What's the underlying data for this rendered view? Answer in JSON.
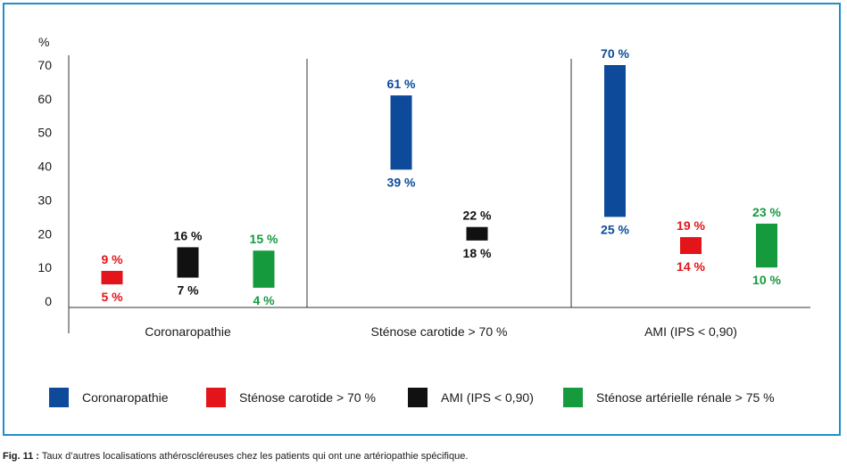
{
  "chart_data": {
    "type": "bar",
    "subtype": "floating-range",
    "y_unit_label": "%",
    "ylim": [
      0,
      70
    ],
    "yticks": [
      0,
      10,
      20,
      30,
      40,
      50,
      60,
      70
    ],
    "categories": [
      "Coronaropathie",
      "Sténose carotide > 70 %",
      "AMI (IPS < 0,90)"
    ],
    "series": [
      {
        "name": "Coronaropathie",
        "color": "#0d4a9a",
        "ranges": [
          null,
          [
            39,
            61
          ],
          [
            25,
            70
          ]
        ],
        "labels": [
          null,
          [
            "39 %",
            "61 %"
          ],
          [
            "25 %",
            "70 %"
          ]
        ]
      },
      {
        "name": "Sténose carotide > 70 %",
        "color": "#e3151a",
        "ranges": [
          [
            5,
            9
          ],
          null,
          [
            14,
            19
          ]
        ],
        "labels": [
          [
            "5 %",
            "9 %"
          ],
          null,
          [
            "14 %",
            "19 %"
          ]
        ]
      },
      {
        "name": "AMI (IPS < 0,90)",
        "color": "#111111",
        "ranges": [
          [
            7,
            16
          ],
          [
            18,
            22
          ],
          null
        ],
        "labels": [
          [
            "7 %",
            "16 %"
          ],
          [
            "18 %",
            "22 %"
          ],
          null
        ]
      },
      {
        "name": "Sténose artérielle rénale > 75 %",
        "color": "#169a3e",
        "ranges": [
          [
            4,
            15
          ],
          null,
          [
            10,
            23
          ]
        ],
        "labels": [
          [
            "4 %",
            "15 %"
          ],
          null,
          [
            "10 %",
            "23 %"
          ]
        ]
      }
    ],
    "label_colors": [
      "#0d4a9a",
      "#e3151a",
      "#111111",
      "#169a3e"
    ],
    "legend_position": "bottom",
    "grid": false
  },
  "caption": {
    "prefix": "Fig. 11 :",
    "text": " Taux d’autres localisations athéroscléreuses chez les patients qui ont une artériopathie spécifique."
  },
  "colors": {
    "frame": "#1f8fc8"
  }
}
